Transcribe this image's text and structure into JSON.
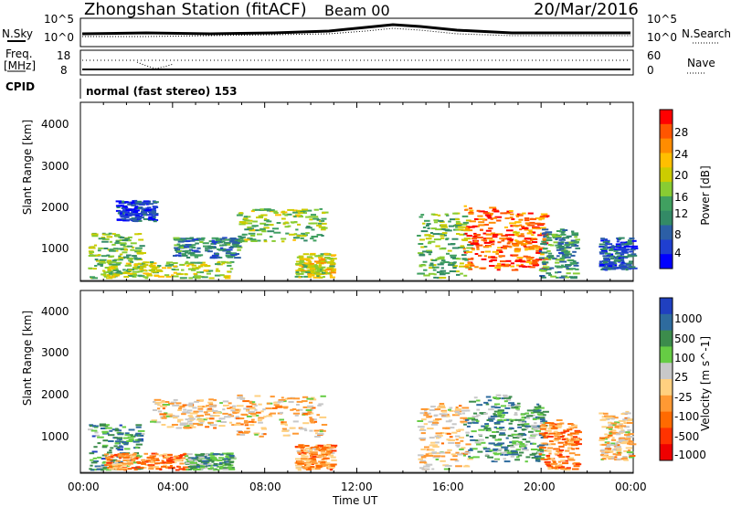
{
  "header": {
    "station": "Zhongshan Station (fitACF)",
    "beam": "Beam 00",
    "date": "20/Mar/2016"
  },
  "sky_panel": {
    "left_label": "N.Sky",
    "right_label": "N.Search",
    "left_ticks": [
      "10^5",
      "10^0"
    ],
    "right_ticks": [
      "10^5",
      "10^0"
    ]
  },
  "freq_panel": {
    "left_label_1": "Freq.",
    "left_label_2": "[MHz]",
    "right_label": "Nave",
    "left_ticks": [
      "18",
      "8"
    ],
    "right_ticks": [
      "60",
      "0"
    ],
    "cpid_label": "CPID"
  },
  "cpid_text": "normal (fast stereo) 153",
  "x_axis": {
    "label": "Time UT",
    "ticks": [
      "00:00",
      "04:00",
      "08:00",
      "12:00",
      "16:00",
      "20:00",
      "00:00"
    ]
  },
  "chart_data": [
    {
      "type": "heatmap",
      "title": "Power",
      "ylabel": "Slant Range [km]",
      "xlabel": "Time UT",
      "xlim": [
        0,
        24
      ],
      "ylim": [
        200,
        4600
      ],
      "y_ticks": [
        "4000",
        "3000",
        "2000",
        "1000"
      ],
      "colorbar": {
        "label": "Power [dB]",
        "ticks": [
          "28",
          "24",
          "20",
          "16",
          "12",
          "8",
          "4"
        ],
        "colors": [
          "#ff0000",
          "#ff5500",
          "#ff8c00",
          "#ffbf00",
          "#cccc00",
          "#88cc33",
          "#40a060",
          "#338a66",
          "#2c5fa6",
          "#1f3fd0",
          "#0000ff"
        ]
      },
      "regions": [
        {
          "t0": 0.3,
          "t1": 2.6,
          "r0": 300,
          "r1": 1400,
          "level": 0.45
        },
        {
          "t0": 1.5,
          "t1": 3.2,
          "r0": 1700,
          "r1": 2200,
          "level": 0.15
        },
        {
          "t0": 1.0,
          "t1": 6.5,
          "r0": 300,
          "r1": 700,
          "level": 0.55
        },
        {
          "t0": 4.0,
          "t1": 6.8,
          "r0": 800,
          "r1": 1300,
          "level": 0.3
        },
        {
          "t0": 6.7,
          "t1": 10.5,
          "r0": 1200,
          "r1": 2000,
          "level": 0.5
        },
        {
          "t0": 9.3,
          "t1": 10.9,
          "r0": 300,
          "r1": 900,
          "level": 0.6
        },
        {
          "t0": 14.6,
          "t1": 16.8,
          "r0": 300,
          "r1": 1900,
          "level": 0.45
        },
        {
          "t0": 16.6,
          "t1": 18.6,
          "r0": 500,
          "r1": 2100,
          "level": 0.85
        },
        {
          "t0": 18.6,
          "t1": 20.1,
          "r0": 500,
          "r1": 1900,
          "level": 0.8
        },
        {
          "t0": 19.9,
          "t1": 21.5,
          "r0": 300,
          "r1": 1500,
          "level": 0.35
        },
        {
          "t0": 22.5,
          "t1": 23.9,
          "r0": 500,
          "r1": 1300,
          "level": 0.2
        }
      ]
    },
    {
      "type": "heatmap",
      "title": "Velocity",
      "ylabel": "Slant Range [km]",
      "xlabel": "Time UT",
      "xlim": [
        0,
        24
      ],
      "ylim": [
        200,
        4600
      ],
      "y_ticks": [
        "4000",
        "3000",
        "2000",
        "1000"
      ],
      "colorbar": {
        "label": "Velocity [m s^-1]",
        "ticks": [
          "1000",
          "500",
          "100",
          "25",
          "-25",
          "-100",
          "-500",
          "-1000"
        ],
        "colors": [
          "#2040c0",
          "#2e6b9e",
          "#3c8c4c",
          "#66cc44",
          "#c8c8c8",
          "#ffd080",
          "#ff9933",
          "#ff6a00",
          "#ff3300",
          "#ee0000"
        ]
      },
      "regions": [
        {
          "t0": 0.3,
          "t1": 2.6,
          "r0": 300,
          "r1": 1400,
          "level": 0.75
        },
        {
          "t0": 1.0,
          "t1": 4.5,
          "r0": 300,
          "r1": 700,
          "level": 0.3
        },
        {
          "t0": 4.5,
          "t1": 6.5,
          "r0": 300,
          "r1": 700,
          "level": 0.7
        },
        {
          "t0": 3.0,
          "t1": 6.8,
          "r0": 1300,
          "r1": 2000,
          "level": 0.45
        },
        {
          "t0": 6.7,
          "t1": 10.5,
          "r0": 1100,
          "r1": 2100,
          "level": 0.45
        },
        {
          "t0": 9.3,
          "t1": 10.9,
          "r0": 300,
          "r1": 900,
          "level": 0.35
        },
        {
          "t0": 14.6,
          "t1": 16.8,
          "r0": 300,
          "r1": 1900,
          "level": 0.45
        },
        {
          "t0": 16.6,
          "t1": 18.6,
          "r0": 500,
          "r1": 2100,
          "level": 0.72
        },
        {
          "t0": 18.6,
          "t1": 20.1,
          "r0": 500,
          "r1": 1900,
          "level": 0.7
        },
        {
          "t0": 19.9,
          "t1": 21.5,
          "r0": 300,
          "r1": 1500,
          "level": 0.3
        },
        {
          "t0": 22.5,
          "t1": 23.9,
          "r0": 500,
          "r1": 1700,
          "level": 0.45
        }
      ]
    }
  ]
}
